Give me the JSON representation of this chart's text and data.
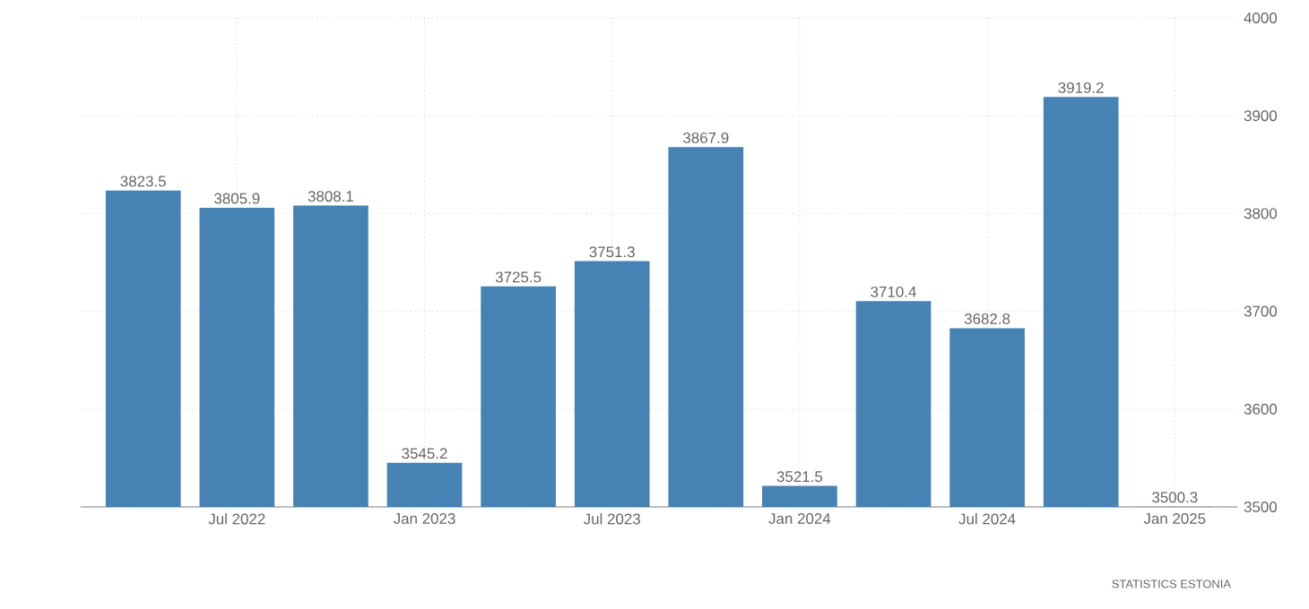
{
  "chart_data": {
    "type": "bar",
    "x": [
      "2022-04",
      "2022-07",
      "2022-10",
      "2023-01",
      "2023-04",
      "2023-07",
      "2023-10",
      "2024-01",
      "2024-04",
      "2024-07",
      "2024-10",
      "2025-01"
    ],
    "values": [
      3823.5,
      3805.9,
      3808.1,
      3545.2,
      3725.5,
      3751.3,
      3867.9,
      3521.5,
      3710.4,
      3682.8,
      3919.2,
      3500.3
    ],
    "color": "#4682b4",
    "xlim": [
      "2022-02",
      "2025-03"
    ],
    "xticks": [
      {
        "value": "2022-07",
        "label": "Jul 2022"
      },
      {
        "value": "2023-01",
        "label": "Jan 2023"
      },
      {
        "value": "2023-07",
        "label": "Jul 2023"
      },
      {
        "value": "2024-01",
        "label": "Jan 2024"
      },
      {
        "value": "2024-07",
        "label": "Jul 2024"
      },
      {
        "value": "2025-01",
        "label": "Jan 2025"
      }
    ],
    "ylim": [
      3500,
      4000
    ],
    "yticks": [
      3500,
      3600,
      3700,
      3800,
      3900,
      4000
    ],
    "grid": true,
    "data_labels": true,
    "annotations": [
      "STATISTICS ESTONIA"
    ]
  }
}
